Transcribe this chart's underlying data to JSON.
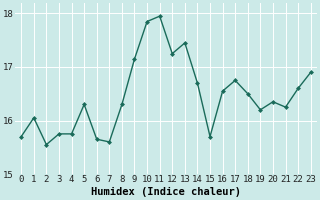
{
  "x": [
    0,
    1,
    2,
    3,
    4,
    5,
    6,
    7,
    8,
    9,
    10,
    11,
    12,
    13,
    14,
    15,
    16,
    17,
    18,
    19,
    20,
    21,
    22,
    23
  ],
  "y": [
    15.7,
    16.05,
    15.55,
    15.75,
    15.75,
    16.3,
    15.65,
    15.6,
    16.3,
    17.15,
    17.85,
    17.95,
    17.25,
    17.45,
    16.7,
    15.7,
    16.55,
    16.75,
    16.5,
    16.2,
    16.35,
    16.25,
    16.6,
    16.9
  ],
  "line_color": "#1a6b5a",
  "marker": "D",
  "marker_size": 2.0,
  "line_width": 1.0,
  "bg_color": "#cceae8",
  "grid_color": "#ffffff",
  "grid_linewidth": 0.7,
  "xlabel": "Humidex (Indice chaleur)",
  "xlim": [
    -0.5,
    23.5
  ],
  "ylim": [
    15.0,
    18.2
  ],
  "yticks": [
    15,
    16,
    17,
    18
  ],
  "xtick_labels": [
    "0",
    "1",
    "2",
    "3",
    "4",
    "5",
    "6",
    "7",
    "8",
    "9",
    "10",
    "11",
    "12",
    "13",
    "14",
    "15",
    "16",
    "17",
    "18",
    "19",
    "20",
    "21",
    "22",
    "23"
  ],
  "xlabel_fontsize": 7.5,
  "tick_fontsize": 6.5
}
